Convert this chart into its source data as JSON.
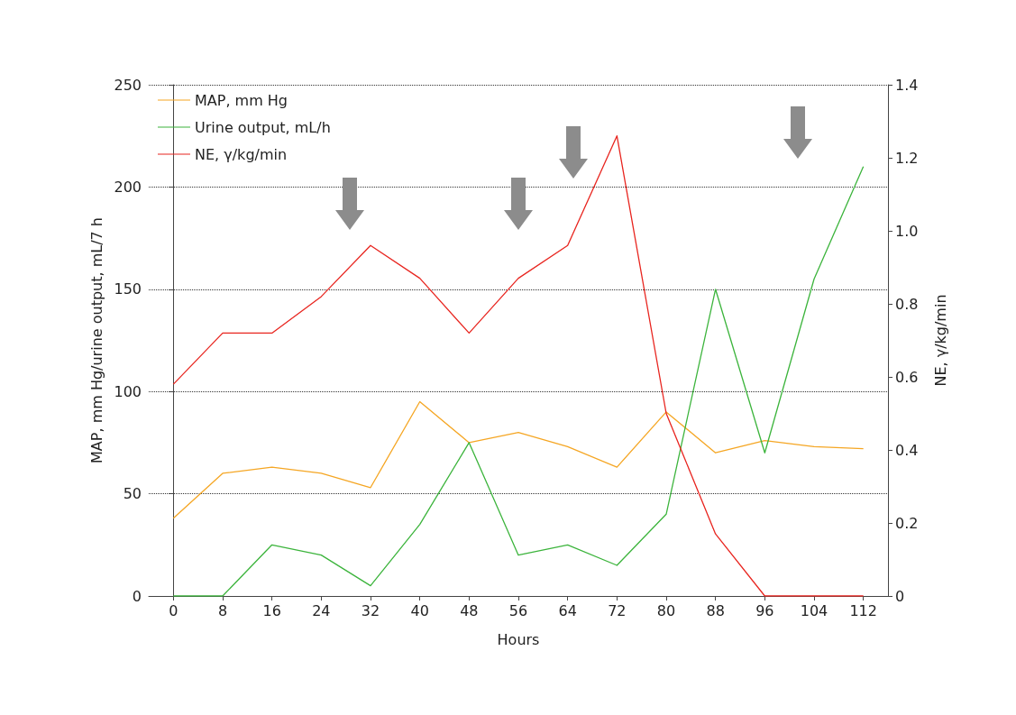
{
  "chart_data": {
    "type": "line",
    "xlabel": "Hours",
    "ylabel": "MAP, mm Hg/urine output, mL/7 h",
    "y2label": "NE, γ/kg/min",
    "x": [
      0,
      8,
      16,
      24,
      32,
      40,
      48,
      56,
      64,
      72,
      80,
      88,
      96,
      104,
      112
    ],
    "series": [
      {
        "name": "MAP, mm Hg",
        "color": "#f5a623",
        "values": [
          38,
          60,
          63,
          60,
          53,
          95,
          75,
          80,
          73,
          63,
          90,
          70,
          76,
          73,
          72
        ]
      },
      {
        "name": "Urine output, mL/h",
        "color": "#3cb43c",
        "values": [
          0,
          0,
          25,
          20,
          5,
          35,
          75,
          20,
          25,
          15,
          40,
          150,
          70,
          155,
          210
        ]
      },
      {
        "name": "NE, γ/kg/min",
        "color": "#e8251f",
        "axis": "y2",
        "values": [
          0.58,
          0.72,
          0.72,
          0.82,
          0.96,
          0.87,
          0.72,
          0.87,
          0.96,
          1.26,
          0.5,
          0.17,
          0,
          0,
          0
        ]
      }
    ],
    "xlim": [
      -4,
      116
    ],
    "xticks": [
      0,
      8,
      16,
      24,
      32,
      40,
      48,
      56,
      64,
      72,
      80,
      88,
      96,
      104,
      112
    ],
    "ylim": [
      0,
      250
    ],
    "yticks": [
      0,
      50,
      100,
      150,
      200,
      250
    ],
    "y2lim": [
      0,
      1.4
    ],
    "y2ticks": [
      0,
      0.2,
      0.4,
      0.6,
      0.8,
      {
        "value": 1,
        "label": "1.0"
      },
      1.2,
      1.4
    ],
    "grid": "y",
    "legend": "top left",
    "marker": "none",
    "line_style": "solid"
  }
}
